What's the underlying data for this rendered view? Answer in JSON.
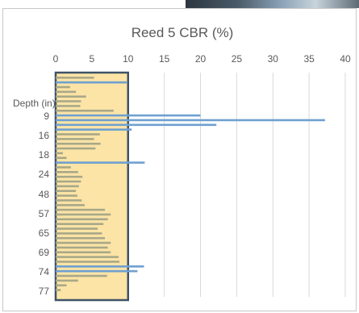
{
  "chart_data": {
    "type": "bar",
    "orientation": "horizontal",
    "title": "Reed 5 CBR (%)",
    "y_axis_title": "Depth (in)",
    "xlim": [
      0,
      40
    ],
    "x_ticks": [
      "0",
      "5",
      "10",
      "15",
      "20",
      "25",
      "30",
      "35",
      "40"
    ],
    "y_tick_labels": [
      "9",
      "16",
      "18",
      "24",
      "48",
      "57",
      "65",
      "69",
      "74",
      "77"
    ],
    "grid": "vertical gridlines",
    "legend": "none",
    "colors": {
      "bar_fill": "#a8a889",
      "bar_highlight": "#6fa0d0",
      "band_fill": "#fce4a6",
      "band_border": "#3d5268"
    },
    "highlight_band_x": [
      0,
      10
    ],
    "values": [
      5.3,
      9.8,
      2.0,
      2.8,
      4.2,
      3.5,
      3.4,
      8.0,
      20.0,
      37.2,
      22.2,
      10.5,
      6.1,
      5.3,
      6.2,
      5.5,
      1.0,
      1.5,
      12.3,
      2.1,
      3.1,
      3.7,
      3.5,
      3.2,
      2.8,
      3.0,
      3.6,
      4.0,
      6.8,
      7.6,
      7.2,
      6.6,
      5.8,
      6.4,
      6.8,
      7.6,
      7.2,
      7.6,
      8.7,
      8.8,
      12.2,
      11.3,
      7.1,
      3.1,
      1.5,
      0.7
    ],
    "series_colors": [
      "#a8a889",
      "#6fa0d0",
      "#a8a889",
      "#a8a889",
      "#a8a889",
      "#a8a889",
      "#a8a889",
      "#a8a889",
      "#6fa0d0",
      "#6fa0d0",
      "#6fa0d0",
      "#6fa0d0",
      "#a8a889",
      "#a8a889",
      "#a8a889",
      "#a8a889",
      "#a8a889",
      "#a8a889",
      "#6fa0d0",
      "#a8a889",
      "#a8a889",
      "#a8a889",
      "#a8a889",
      "#a8a889",
      "#a8a889",
      "#a8a889",
      "#a8a889",
      "#a8a889",
      "#a8a889",
      "#a8a889",
      "#a8a889",
      "#a8a889",
      "#a8a889",
      "#a8a889",
      "#a8a889",
      "#a8a889",
      "#a8a889",
      "#a8a889",
      "#a8a889",
      "#a8a889",
      "#6fa0d0",
      "#6fa0d0",
      "#a8a889",
      "#a8a889",
      "#a8a889",
      "#a8a889"
    ]
  }
}
